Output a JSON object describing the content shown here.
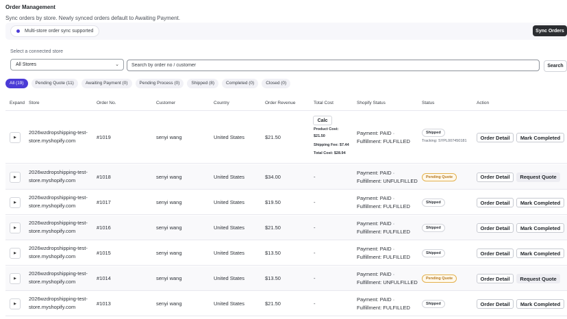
{
  "header": {
    "title": "Order Management",
    "subtitle": "Sync orders by store. Newly synced orders default to Awaiting Payment."
  },
  "banner": {
    "pill_label": "Multi-store order sync supported",
    "sync_button": "Sync Orders"
  },
  "filters": {
    "store_label": "Select a connected store",
    "store_value": "All Stores",
    "search_placeholder": "Search by order no / customer",
    "search_button": "Search"
  },
  "tabs": [
    {
      "label": "All (19)",
      "active": true
    },
    {
      "label": "Pending Quote (11)",
      "active": false
    },
    {
      "label": "Awaiting Payment (0)",
      "active": false
    },
    {
      "label": "Pending Process (0)",
      "active": false
    },
    {
      "label": "Shipped (8)",
      "active": false
    },
    {
      "label": "Completed (0)",
      "active": false
    },
    {
      "label": "Closed (0)",
      "active": false
    }
  ],
  "columns": {
    "expand": "Expand",
    "store": "Store",
    "order_no": "Order No.",
    "customer": "Customer",
    "country": "Country",
    "revenue": "Order Revenue",
    "total_cost": "Total Cost",
    "shopify_status": "Shopify Status",
    "status": "Status",
    "action": "Action"
  },
  "calc": {
    "button": "Calc",
    "product_cost": "Product Cost:",
    "product_cost_value": "$21.50",
    "shipping_fee": "Shipping Fee: $7.44",
    "total_cost": "Total Cost: $28.94"
  },
  "actions": {
    "order_detail": "Order Detail",
    "mark_completed": "Mark Completed",
    "request_quote": "Request Quote"
  },
  "expand_glyph": "▶",
  "select_caret": "⌄",
  "orders": [
    {
      "store_line1": "2026wzdropshipping-test-",
      "store_line2": "store.myshopify.com",
      "order_no": "#1019",
      "customer": "senyi wang",
      "country": "United States",
      "revenue": "$21.50",
      "total_cost": "",
      "payment": "Payment: PAID ·",
      "fulfillment": "Fulfillment: FULFILLED",
      "status": "Shipped",
      "tracking": "Tracking: SYPL007450181",
      "action2": "mark"
    },
    {
      "store_line1": "2026wzdropshipping-test-",
      "store_line2": "store.myshopify.com",
      "order_no": "#1018",
      "customer": "senyi wang",
      "country": "United States",
      "revenue": "$34.00",
      "total_cost": "-",
      "payment": "Payment: PAID ·",
      "fulfillment": "Fulfillment: UNFULFILLED",
      "status": "Pending Quote",
      "tracking": "",
      "action2": "quote"
    },
    {
      "store_line1": "2026wzdropshipping-test-",
      "store_line2": "store.myshopify.com",
      "order_no": "#1017",
      "customer": "senyi wang",
      "country": "United States",
      "revenue": "$19.50",
      "total_cost": "-",
      "payment": "Payment: PAID ·",
      "fulfillment": "Fulfillment: FULFILLED",
      "status": "Shipped",
      "tracking": "",
      "action2": "mark"
    },
    {
      "store_line1": "2026wzdropshipping-test-",
      "store_line2": "store.myshopify.com",
      "order_no": "#1016",
      "customer": "senyi wang",
      "country": "United States",
      "revenue": "$21.50",
      "total_cost": "-",
      "payment": "Payment: PAID ·",
      "fulfillment": "Fulfillment: FULFILLED",
      "status": "Shipped",
      "tracking": "",
      "action2": "mark"
    },
    {
      "store_line1": "2026wzdropshipping-test-",
      "store_line2": "store.myshopify.com",
      "order_no": "#1015",
      "customer": "senyi wang",
      "country": "United States",
      "revenue": "$13.50",
      "total_cost": "-",
      "payment": "Payment: PAID ·",
      "fulfillment": "Fulfillment: FULFILLED",
      "status": "Shipped",
      "tracking": "",
      "action2": "mark"
    },
    {
      "store_line1": "2026wzdropshipping-test-",
      "store_line2": "store.myshopify.com",
      "order_no": "#1014",
      "customer": "senyi wang",
      "country": "United States",
      "revenue": "$13.50",
      "total_cost": "-",
      "payment": "Payment: PAID ·",
      "fulfillment": "Fulfillment: UNFULFILLED",
      "status": "Pending Quote",
      "tracking": "",
      "action2": "quote"
    },
    {
      "store_line1": "2026wzdropshipping-test-",
      "store_line2": "store.myshopify.com",
      "order_no": "#1013",
      "customer": "senyi wang",
      "country": "United States",
      "revenue": "$21.50",
      "total_cost": "-",
      "payment": "Payment: PAID ·",
      "fulfillment": "Fulfillment: FULFILLED",
      "status": "Shipped",
      "tracking": "",
      "action2": "mark"
    }
  ]
}
